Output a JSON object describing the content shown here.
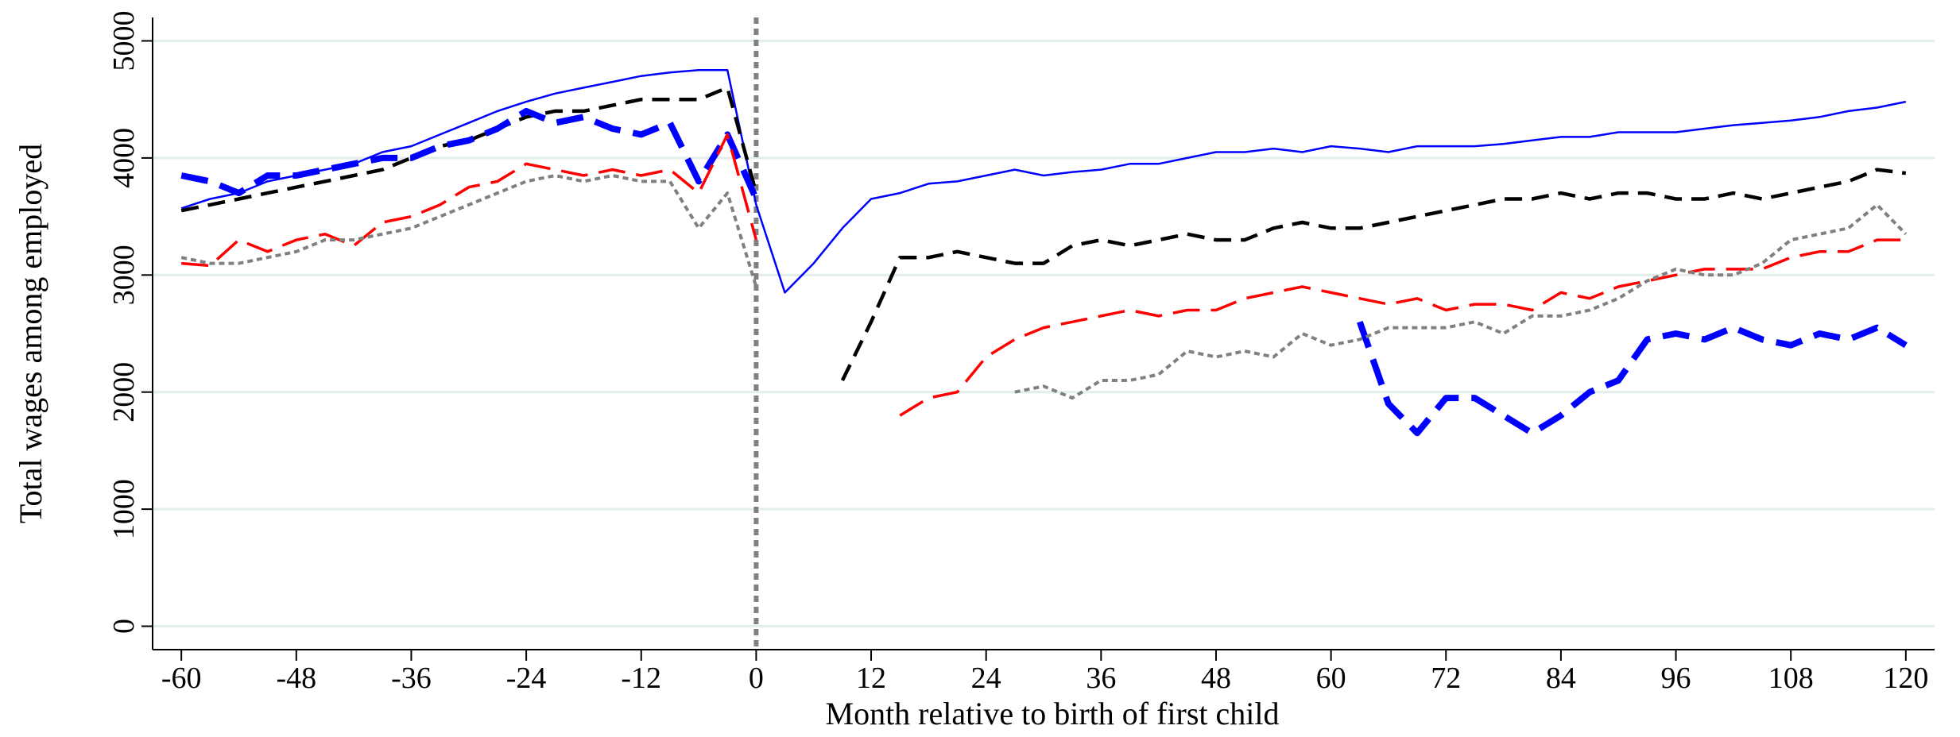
{
  "chart_data": {
    "type": "line",
    "xlabel": "Month relative to birth of first child",
    "ylabel": "Total wages among employed",
    "x": [
      -60,
      -57,
      -54,
      -51,
      -48,
      -45,
      -42,
      -39,
      -36,
      -33,
      -30,
      -27,
      -24,
      -21,
      -18,
      -15,
      -12,
      -9,
      -6,
      -3,
      0,
      3,
      6,
      9,
      12,
      15,
      18,
      21,
      24,
      27,
      30,
      33,
      36,
      39,
      42,
      45,
      48,
      51,
      54,
      57,
      60,
      63,
      66,
      69,
      72,
      75,
      78,
      81,
      84,
      87,
      90,
      93,
      96,
      99,
      102,
      105,
      108,
      111,
      114,
      117,
      120
    ],
    "series": [
      {
        "color": "#0000ff",
        "style": "solid",
        "values": [
          3570,
          3650,
          3700,
          3800,
          3850,
          3900,
          3950,
          4050,
          4100,
          4200,
          4300,
          4400,
          4480,
          4550,
          4600,
          4650,
          4700,
          4730,
          4750,
          4750,
          3600,
          2850,
          3100,
          3400,
          3650,
          3700,
          3780,
          3800,
          3850,
          3900,
          3850,
          3880,
          3900,
          3950,
          3950,
          4000,
          4050,
          4050,
          4080,
          4050,
          4100,
          4080,
          4050,
          4100,
          4100,
          4100,
          4120,
          4150,
          4180,
          4180,
          4220,
          4220,
          4220,
          4250,
          4280,
          4300,
          4320,
          4350,
          4400,
          4430,
          4480
        ]
      },
      {
        "color": "#000000",
        "style": "dashed",
        "values": [
          3550,
          3600,
          3650,
          3700,
          3750,
          3800,
          3850,
          3900,
          4000,
          4100,
          4150,
          4250,
          4350,
          4400,
          4400,
          4450,
          4500,
          4500,
          4500,
          4600,
          3700,
          null,
          null,
          2100,
          2600,
          3150,
          3150,
          3200,
          3150,
          3100,
          3100,
          3250,
          3300,
          3250,
          3300,
          3350,
          3300,
          3300,
          3400,
          3450,
          3400,
          3400,
          3450,
          3500,
          3550,
          3600,
          3650,
          3650,
          3700,
          3650,
          3700,
          3700,
          3650,
          3650,
          3700,
          3650,
          3700,
          3750,
          3800,
          3900,
          3870
        ]
      },
      {
        "color": "#0000ff",
        "style": "thick-dashed",
        "values": [
          3850,
          3800,
          3700,
          3850,
          3850,
          3900,
          3950,
          4000,
          4000,
          4100,
          4150,
          4250,
          4400,
          4300,
          4350,
          4250,
          4200,
          4300,
          3800,
          4200,
          3650,
          null,
          null,
          null,
          null,
          null,
          null,
          null,
          null,
          null,
          null,
          null,
          null,
          null,
          null,
          null,
          null,
          null,
          null,
          null,
          null,
          2600,
          1900,
          1650,
          1950,
          1950,
          1800,
          1650,
          1800,
          2000,
          2100,
          2450,
          2500,
          2450,
          2550,
          2450,
          2400,
          2500,
          2450,
          2550,
          2400
        ]
      },
      {
        "color": "#ff0000",
        "style": "long-dashed",
        "values": [
          3100,
          3080,
          3300,
          3200,
          3300,
          3350,
          3250,
          3450,
          3500,
          3600,
          3750,
          3800,
          3950,
          3900,
          3850,
          3900,
          3850,
          3900,
          3700,
          4200,
          3300,
          null,
          null,
          null,
          null,
          1800,
          1950,
          2000,
          2300,
          2450,
          2550,
          2600,
          2650,
          2700,
          2650,
          2700,
          2700,
          2800,
          2850,
          2900,
          2850,
          2800,
          2750,
          2800,
          2700,
          2750,
          2750,
          2700,
          2850,
          2800,
          2900,
          2950,
          3000,
          3050,
          3050,
          3050,
          3150,
          3200,
          3200,
          3300,
          3300
        ]
      },
      {
        "color": "#808080",
        "style": "dotted",
        "values": [
          3150,
          3100,
          3100,
          3150,
          3200,
          3300,
          3300,
          3350,
          3400,
          3500,
          3600,
          3700,
          3800,
          3850,
          3800,
          3850,
          3800,
          3800,
          3400,
          3700,
          2900,
          null,
          null,
          null,
          null,
          null,
          null,
          null,
          null,
          2000,
          2050,
          1950,
          2100,
          2100,
          2150,
          2350,
          2300,
          2350,
          2300,
          2500,
          2400,
          2450,
          2550,
          2550,
          2550,
          2600,
          2500,
          2650,
          2650,
          2700,
          2800,
          2950,
          3050,
          3000,
          3000,
          3100,
          3300,
          3350,
          3400,
          3600,
          3350
        ]
      }
    ],
    "vline": 0,
    "xlim": [
      -63,
      123
    ],
    "ylim": [
      -200,
      5200
    ],
    "xticks": [
      -60,
      -48,
      -36,
      -24,
      -12,
      0,
      12,
      24,
      36,
      48,
      60,
      72,
      84,
      96,
      108,
      120
    ],
    "yticks": [
      0,
      1000,
      2000,
      3000,
      4000,
      5000
    ],
    "grid": true
  }
}
